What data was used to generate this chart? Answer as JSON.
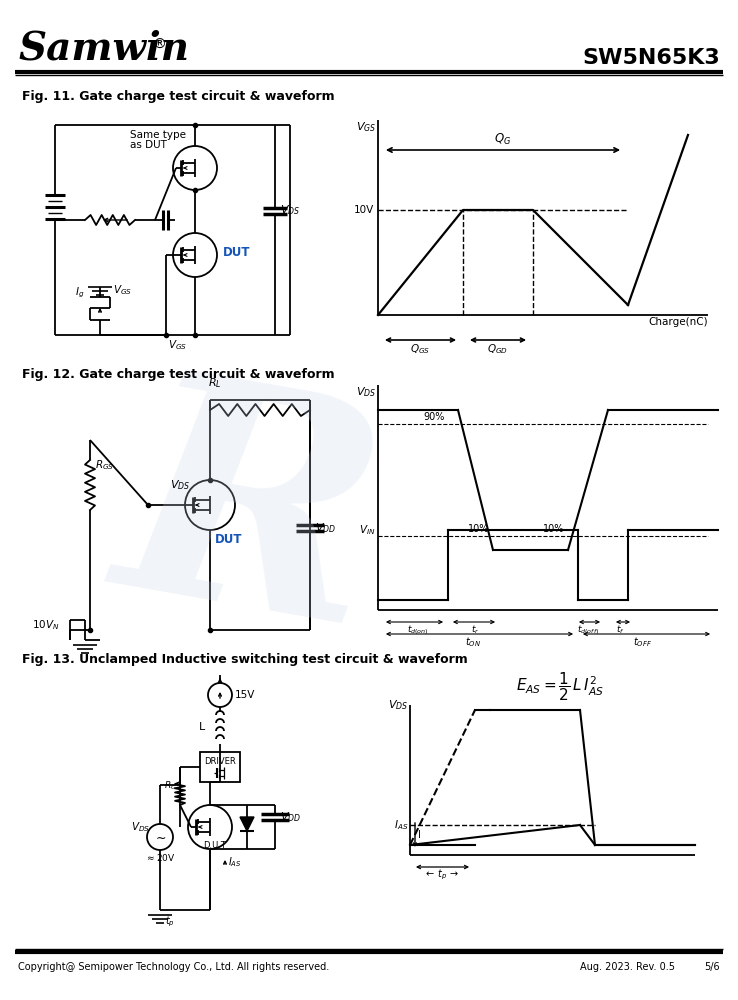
{
  "title_company": "Samwin",
  "title_part": "SW5N65K3",
  "fig11_title": "Fig. 11. Gate charge test circuit & waveform",
  "fig12_title": "Fig. 12. Gate charge test circuit & waveform",
  "fig13_title": "Fig. 13. Unclamped Inductive switching test circuit & waveform",
  "footer_left": "Copyright@ Semipower Technology Co., Ltd. All rights reserved.",
  "footer_right": "Aug. 2023. Rev. 0.5",
  "footer_page": "5/6",
  "bg_color": "#ffffff",
  "watermark_color": "#c8d8e8"
}
